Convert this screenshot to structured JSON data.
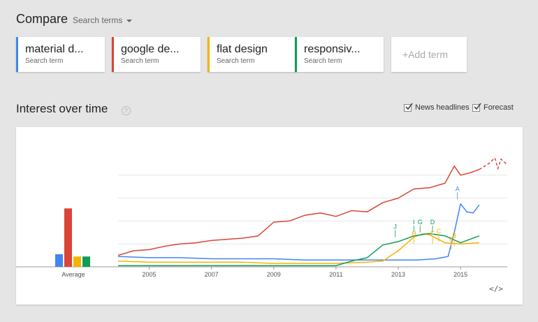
{
  "compare": {
    "title": "Compare",
    "search_terms_label": "Search terms"
  },
  "terms": [
    {
      "name": "material d...",
      "sub": "Search term",
      "color": "#4285f4"
    },
    {
      "name": "google de...",
      "sub": "Search term",
      "color": "#db4437"
    },
    {
      "name": "flat design",
      "sub": "Search term",
      "color": "#f4b400"
    },
    {
      "name": "responsiv...",
      "sub": "Search term",
      "color": "#0f9d58"
    }
  ],
  "add_term": "+Add term",
  "interest": {
    "title": "Interest over time",
    "help_icon": "?",
    "news_headlines": "News headlines",
    "forecast": "Forecast",
    "embed_icon": "</>"
  },
  "chart_data": {
    "type": "line",
    "x_ticks": [
      "2005",
      "2007",
      "2009",
      "2011",
      "2013",
      "2015"
    ],
    "xlim": [
      2004,
      2016.5
    ],
    "ylim": [
      0,
      100
    ],
    "average_label": "Average",
    "averages": [
      11,
      51,
      9,
      9
    ],
    "series": [
      {
        "name": "material design",
        "color": "#4285f4",
        "points": [
          [
            2004,
            9
          ],
          [
            2005,
            8
          ],
          [
            2006,
            8
          ],
          [
            2007,
            7
          ],
          [
            2008,
            7
          ],
          [
            2009,
            7
          ],
          [
            2010,
            6
          ],
          [
            2011,
            6
          ],
          [
            2012,
            6
          ],
          [
            2013,
            6
          ],
          [
            2013.6,
            6
          ],
          [
            2014.2,
            7
          ],
          [
            2014.6,
            9
          ],
          [
            2014.8,
            30
          ],
          [
            2015.0,
            55
          ],
          [
            2015.2,
            48
          ],
          [
            2015.4,
            47
          ],
          [
            2015.6,
            54
          ]
        ]
      },
      {
        "name": "google design",
        "color": "#db4437",
        "points": [
          [
            2004,
            10
          ],
          [
            2004.5,
            14
          ],
          [
            2005,
            15
          ],
          [
            2005.5,
            18
          ],
          [
            2006,
            20
          ],
          [
            2006.5,
            21
          ],
          [
            2007,
            23
          ],
          [
            2007.5,
            24
          ],
          [
            2008,
            25
          ],
          [
            2008.5,
            27
          ],
          [
            2009,
            39
          ],
          [
            2009.5,
            40
          ],
          [
            2010,
            45
          ],
          [
            2010.5,
            47
          ],
          [
            2011,
            44
          ],
          [
            2011.5,
            49
          ],
          [
            2012,
            48
          ],
          [
            2012.5,
            56
          ],
          [
            2013,
            60
          ],
          [
            2013.5,
            68
          ],
          [
            2014,
            69
          ],
          [
            2014.5,
            73
          ],
          [
            2014.8,
            88
          ],
          [
            2015,
            80
          ],
          [
            2015.3,
            82
          ],
          [
            2015.6,
            85
          ]
        ]
      },
      {
        "name": "flat design",
        "color": "#f4b400",
        "points": [
          [
            2004,
            5
          ],
          [
            2005,
            4
          ],
          [
            2006,
            4
          ],
          [
            2007,
            4
          ],
          [
            2008,
            4
          ],
          [
            2009,
            3
          ],
          [
            2010,
            3
          ],
          [
            2011,
            3
          ],
          [
            2012,
            4
          ],
          [
            2012.5,
            5
          ],
          [
            2013,
            14
          ],
          [
            2013.5,
            26
          ],
          [
            2013.8,
            29
          ],
          [
            2014,
            28
          ],
          [
            2014.5,
            21
          ],
          [
            2015,
            20
          ],
          [
            2015.6,
            21
          ]
        ]
      },
      {
        "name": "responsive web design",
        "color": "#0f9d58",
        "points": [
          [
            2004,
            1
          ],
          [
            2005,
            1
          ],
          [
            2006,
            1
          ],
          [
            2007,
            1
          ],
          [
            2008,
            1
          ],
          [
            2009,
            1
          ],
          [
            2010,
            1
          ],
          [
            2011,
            1
          ],
          [
            2011.5,
            5
          ],
          [
            2012,
            8
          ],
          [
            2012.5,
            19
          ],
          [
            2013,
            22
          ],
          [
            2013.5,
            27
          ],
          [
            2014,
            29
          ],
          [
            2014.5,
            27
          ],
          [
            2015,
            21
          ],
          [
            2015.6,
            27
          ]
        ]
      }
    ],
    "forecast": {
      "series": "google design",
      "color": "#db4437",
      "points": [
        [
          2015.6,
          85
        ],
        [
          2015.9,
          90
        ],
        [
          2016.1,
          95
        ],
        [
          2016.2,
          86
        ],
        [
          2016.3,
          94
        ],
        [
          2016.5,
          89
        ]
      ]
    },
    "annotations": [
      {
        "label": "A",
        "x": 2014.9,
        "y": 65,
        "color": "#4285f4"
      },
      {
        "label": "J",
        "x": 2012.9,
        "y": 32,
        "color": "#0f9d58"
      },
      {
        "label": "I",
        "x": 2013.5,
        "y": 36,
        "color": "#0f9d58"
      },
      {
        "label": "G",
        "x": 2013.7,
        "y": 36,
        "color": "#0f9d58"
      },
      {
        "label": "D",
        "x": 2014.1,
        "y": 36,
        "color": "#0f9d58"
      },
      {
        "label": "H",
        "x": 2013.5,
        "y": 26,
        "color": "#f4b400"
      },
      {
        "label": "F",
        "x": 2014.1,
        "y": 26,
        "color": "#f4b400"
      },
      {
        "label": "C",
        "x": 2014.3,
        "y": 28,
        "color": "#f4b400"
      },
      {
        "label": "E",
        "x": 2014.7,
        "y": 21,
        "color": "#f4b400"
      },
      {
        "label": "B",
        "x": 2014.8,
        "y": 24,
        "color": "#f4b400"
      }
    ]
  }
}
